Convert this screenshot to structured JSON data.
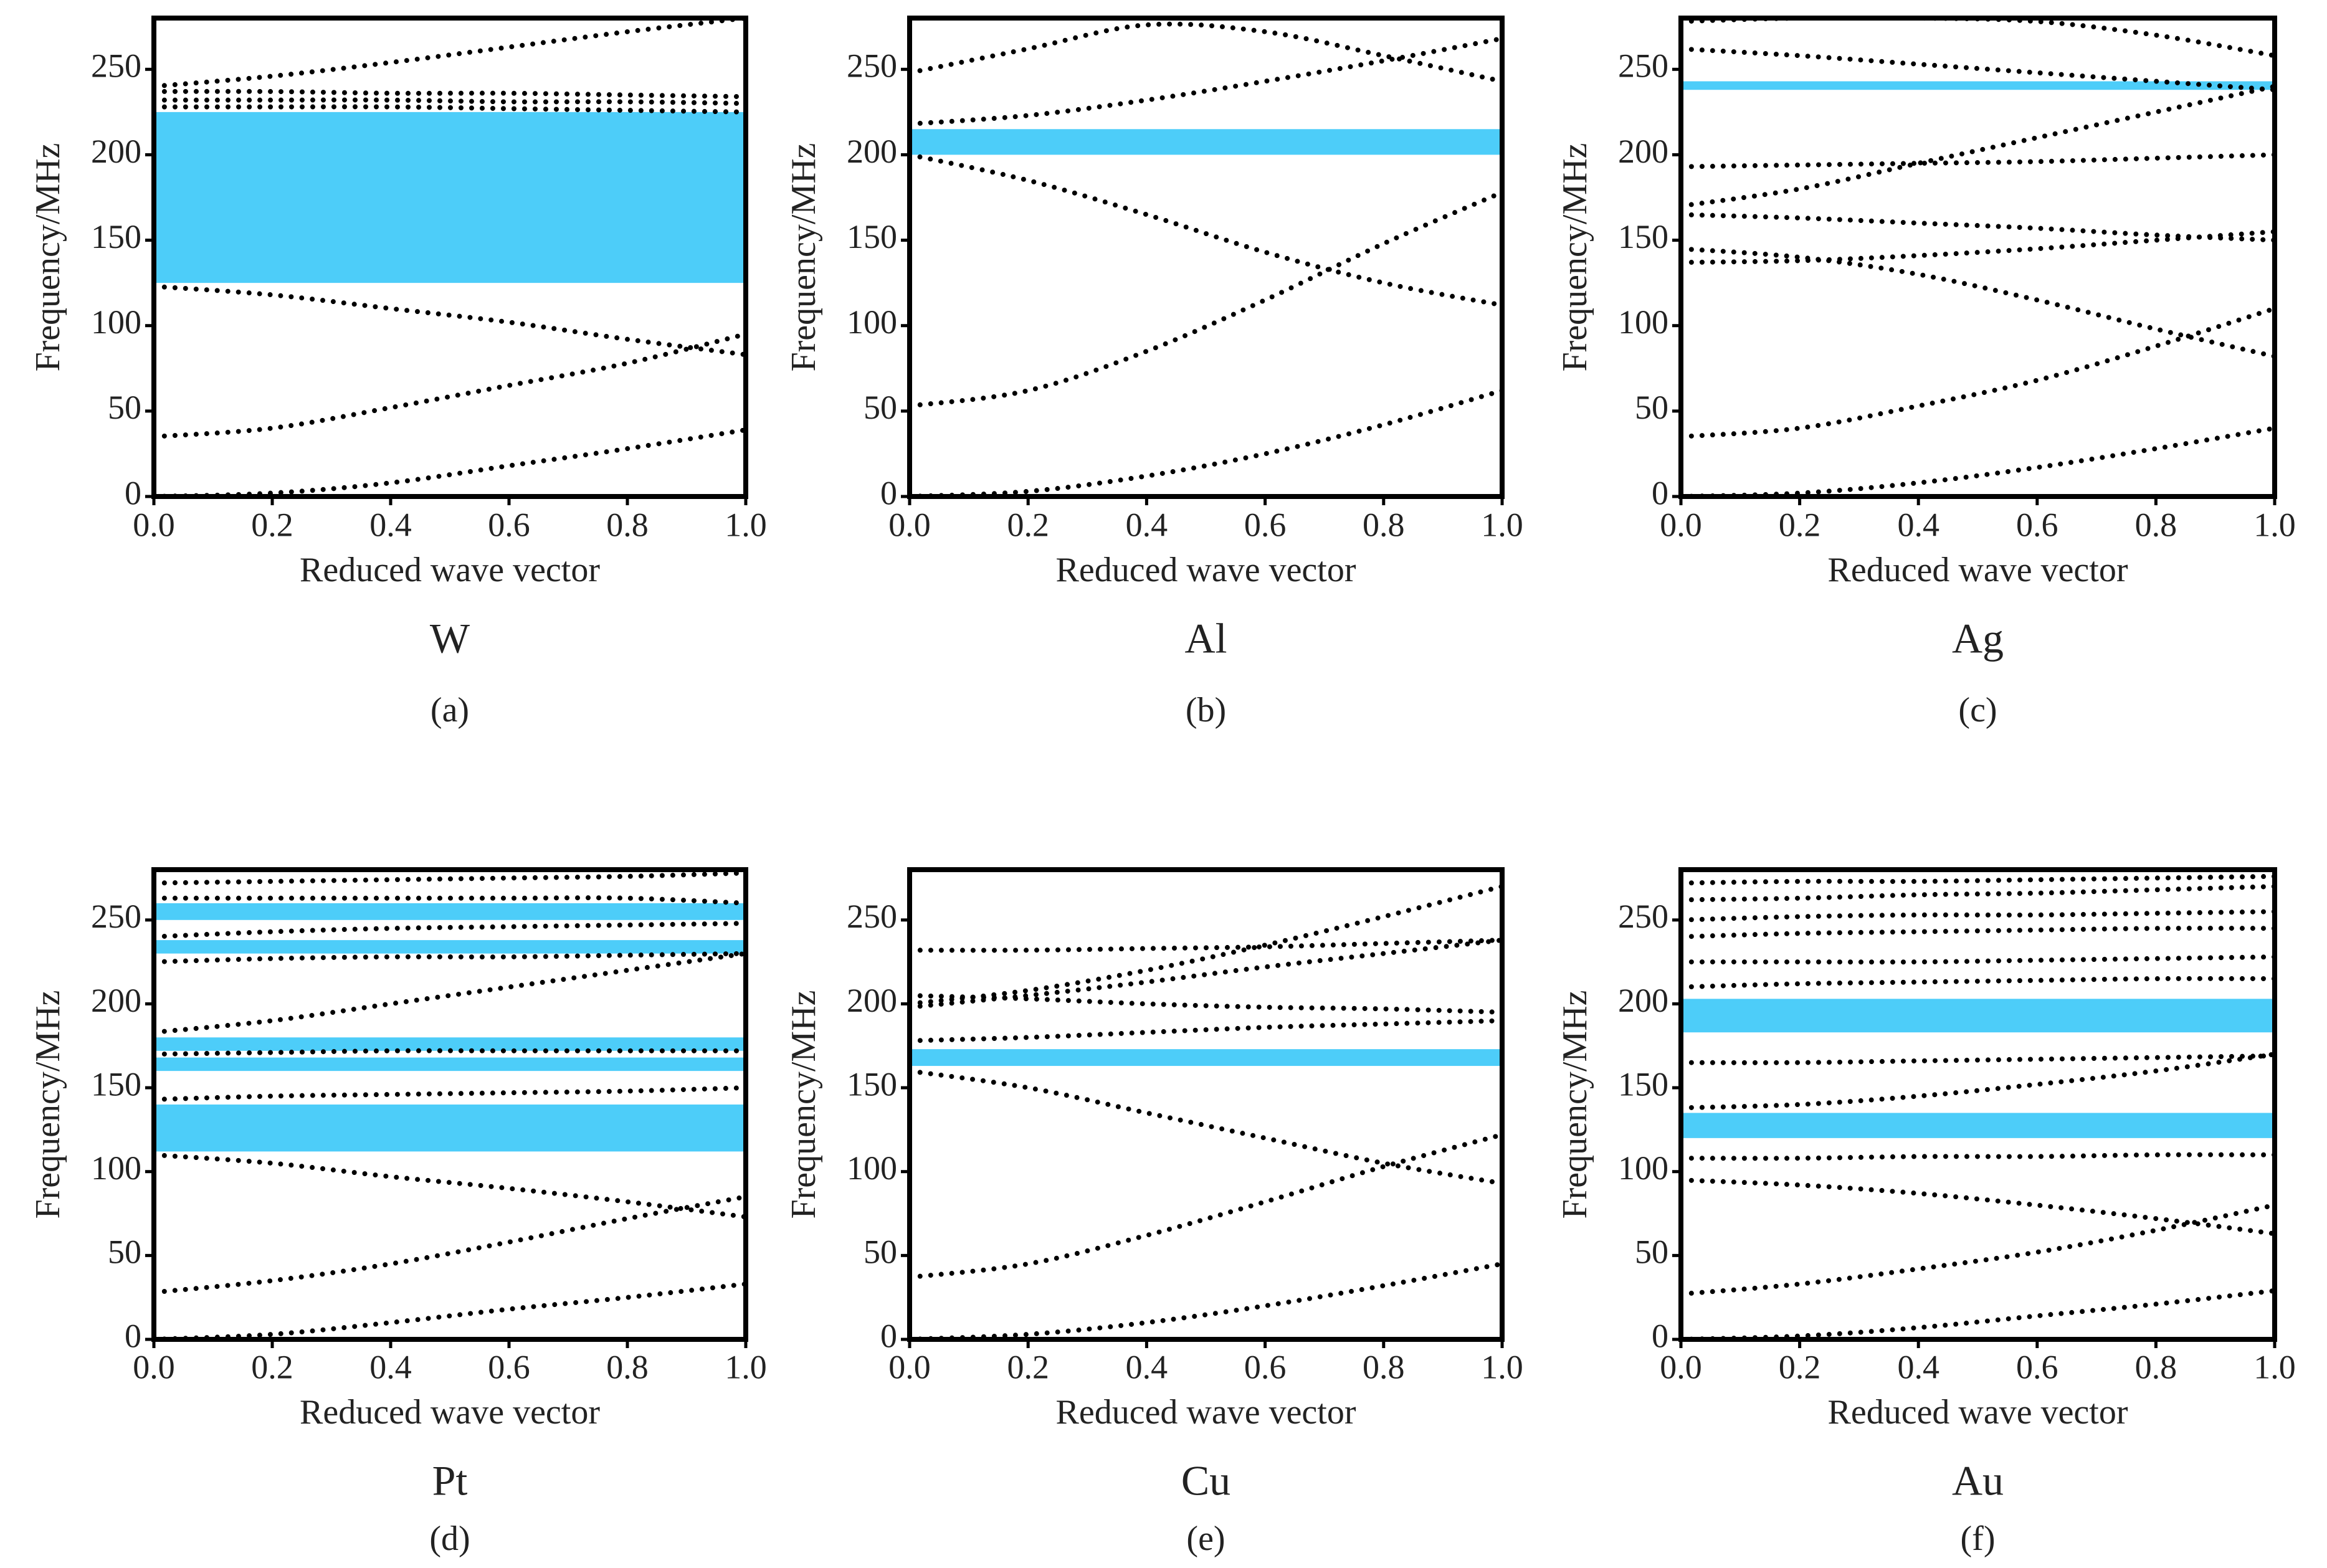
{
  "chart_data": [
    {
      "type": "line",
      "title": "W",
      "label": "(a)",
      "xlabel": "Reduced wave vector",
      "ylabel": "Frequency/MHz",
      "x": [
        0,
        0.2,
        0.4,
        0.6,
        0.8,
        1.0
      ],
      "xlim": [
        0,
        1
      ],
      "xticks": [
        {
          "value": 0,
          "label": "0.0"
        },
        0.2,
        0.4,
        0.6,
        0.8,
        {
          "value": 1,
          "label": "1.0"
        }
      ],
      "ylim": [
        0,
        280
      ],
      "yticks": [
        0,
        50,
        100,
        150,
        200,
        250
      ],
      "gap_color": "#4dcdf9",
      "gaps": [
        [
          125,
          225
        ]
      ],
      "series": [
        {
          "color": "#000",
          "values": [
            0,
            2,
            8,
            18,
            28,
            39
          ]
        },
        {
          "color": "#000",
          "values": [
            35,
            40,
            52,
            65,
            78,
            95
          ]
        },
        {
          "color": "#000",
          "values": [
            123,
            118,
            110,
            102,
            92,
            83
          ]
        },
        {
          "color": "#000",
          "values": [
            228,
            228,
            228,
            227,
            226,
            225
          ]
        },
        {
          "color": "#000",
          "values": [
            232,
            232,
            232,
            231,
            231,
            230
          ]
        },
        {
          "color": "#000",
          "values": [
            237,
            237,
            236,
            236,
            235,
            234
          ]
        },
        {
          "color": "#000",
          "values": [
            240,
            246,
            254,
            263,
            272,
            280
          ]
        }
      ]
    },
    {
      "type": "line",
      "title": "Al",
      "label": "(b)",
      "xlabel": "Reduced wave vector",
      "ylabel": "Frequency/MHz",
      "x": [
        0,
        0.2,
        0.4,
        0.6,
        0.8,
        1.0
      ],
      "xlim": [
        0,
        1
      ],
      "xticks": [
        {
          "value": 0,
          "label": "0.0"
        },
        0.2,
        0.4,
        0.6,
        0.8,
        {
          "value": 1,
          "label": "1.0"
        }
      ],
      "ylim": [
        0,
        280
      ],
      "yticks": [
        0,
        50,
        100,
        150,
        200,
        250
      ],
      "gap_color": "#4dcdf9",
      "gaps": [
        [
          200,
          215
        ]
      ],
      "series": [
        {
          "color": "#000",
          "values": [
            0,
            3,
            12,
            25,
            42,
            62
          ]
        },
        {
          "color": "#000",
          "values": [
            53,
            62,
            85,
            115,
            148,
            178
          ]
        },
        {
          "color": "#000",
          "values": [
            200,
            185,
            165,
            143,
            125,
            112
          ]
        },
        {
          "color": "#000",
          "values": [
            218,
            223,
            232,
            243,
            255,
            268
          ]
        },
        {
          "color": "#000",
          "values": [
            248,
            262,
            276,
            272,
            258,
            243
          ]
        }
      ]
    },
    {
      "type": "line",
      "title": "Ag",
      "label": "(c)",
      "xlabel": "Reduced wave vector",
      "ylabel": "Frequency/MHz",
      "x": [
        0,
        0.2,
        0.4,
        0.6,
        0.8,
        1.0
      ],
      "xlim": [
        0,
        1
      ],
      "xticks": [
        {
          "value": 0,
          "label": "0.0"
        },
        0.2,
        0.4,
        0.6,
        0.8,
        {
          "value": 1,
          "label": "1.0"
        }
      ],
      "ylim": [
        0,
        280
      ],
      "yticks": [
        0,
        50,
        100,
        150,
        200,
        250
      ],
      "gap_color": "#4dcdf9",
      "gaps": [
        [
          238,
          243
        ]
      ],
      "series": [
        {
          "color": "#000",
          "values": [
            0,
            2,
            8,
            17,
            28,
            40
          ]
        },
        {
          "color": "#000",
          "values": [
            35,
            40,
            53,
            68,
            88,
            110
          ]
        },
        {
          "color": "#000",
          "values": [
            137,
            138,
            141,
            145,
            150,
            155
          ]
        },
        {
          "color": "#000",
          "values": [
            145,
            140,
            130,
            115,
            98,
            82
          ]
        },
        {
          "color": "#000",
          "values": [
            165,
            163,
            160,
            157,
            153,
            150
          ]
        },
        {
          "color": "#000",
          "values": [
            170,
            180,
            195,
            210,
            225,
            240
          ]
        },
        {
          "color": "#000",
          "values": [
            193,
            194,
            195,
            196,
            198,
            200
          ]
        },
        {
          "color": "#000",
          "values": [
            262,
            258,
            253,
            248,
            243,
            238
          ]
        },
        {
          "color": "#000",
          "values": [
            278,
            280,
            280,
            278,
            270,
            258
          ]
        }
      ]
    },
    {
      "type": "line",
      "title": "Pt",
      "label": "(d)",
      "xlabel": "Reduced wave vector",
      "ylabel": "Frequency/MHz",
      "x": [
        0,
        0.2,
        0.4,
        0.6,
        0.8,
        1.0
      ],
      "xlim": [
        0,
        1
      ],
      "xticks": [
        {
          "value": 0,
          "label": "0.0"
        },
        0.2,
        0.4,
        0.6,
        0.8,
        {
          "value": 1,
          "label": "1.0"
        }
      ],
      "ylim": [
        0,
        280
      ],
      "yticks": [
        0,
        50,
        100,
        150,
        200,
        250
      ],
      "gap_color": "#4dcdf9",
      "gaps": [
        [
          112,
          140
        ],
        [
          160,
          168
        ],
        [
          172,
          180
        ],
        [
          230,
          238
        ],
        [
          250,
          260
        ]
      ],
      "series": [
        {
          "color": "#000",
          "values": [
            0,
            3,
            10,
            18,
            25,
            33
          ]
        },
        {
          "color": "#000",
          "values": [
            28,
            35,
            45,
            58,
            72,
            85
          ]
        },
        {
          "color": "#000",
          "values": [
            110,
            105,
            97,
            90,
            82,
            73
          ]
        },
        {
          "color": "#000",
          "values": [
            143,
            145,
            146,
            147,
            148,
            150
          ]
        },
        {
          "color": "#000",
          "values": [
            170,
            171,
            172,
            172,
            172,
            172
          ]
        },
        {
          "color": "#000",
          "values": [
            183,
            190,
            200,
            210,
            220,
            230
          ]
        },
        {
          "color": "#000",
          "values": [
            225,
            227,
            228,
            228,
            229,
            230
          ]
        },
        {
          "color": "#000",
          "values": [
            240,
            243,
            245,
            246,
            247,
            248
          ]
        },
        {
          "color": "#000",
          "values": [
            263,
            263,
            263,
            263,
            263,
            260
          ]
        },
        {
          "color": "#000",
          "values": [
            272,
            273,
            274,
            275,
            276,
            278
          ]
        }
      ]
    },
    {
      "type": "line",
      "title": "Cu",
      "label": "(e)",
      "xlabel": "Reduced wave vector",
      "ylabel": "Frequency/MHz",
      "x": [
        0,
        0.2,
        0.4,
        0.6,
        0.8,
        1.0
      ],
      "xlim": [
        0,
        1
      ],
      "xticks": [
        {
          "value": 0,
          "label": "0.0"
        },
        0.2,
        0.4,
        0.6,
        0.8,
        {
          "value": 1,
          "label": "1.0"
        }
      ],
      "ylim": [
        0,
        280
      ],
      "yticks": [
        0,
        50,
        100,
        150,
        200,
        250
      ],
      "gap_color": "#4dcdf9",
      "gaps": [
        [
          163,
          173
        ]
      ],
      "series": [
        {
          "color": "#000",
          "values": [
            0,
            3,
            10,
            20,
            32,
            45
          ]
        },
        {
          "color": "#000",
          "values": [
            37,
            45,
            62,
            82,
            103,
            122
          ]
        },
        {
          "color": "#000",
          "values": [
            160,
            150,
            135,
            120,
            105,
            93
          ]
        },
        {
          "color": "#000",
          "values": [
            178,
            180,
            183,
            186,
            188,
            190
          ]
        },
        {
          "color": "#000",
          "values": [
            205,
            203,
            200,
            198,
            197,
            195
          ]
        },
        {
          "color": "#000",
          "values": [
            200,
            208,
            220,
            235,
            252,
            270
          ]
        },
        {
          "color": "#000",
          "values": [
            198,
            205,
            213,
            222,
            230,
            238
          ]
        },
        {
          "color": "#000",
          "values": [
            232,
            232,
            233,
            234,
            236,
            238
          ]
        }
      ]
    },
    {
      "type": "line",
      "title": "Au",
      "label": "(f)",
      "xlabel": "Reduced wave vector",
      "ylabel": "Frequency/MHz",
      "x": [
        0,
        0.2,
        0.4,
        0.6,
        0.8,
        1.0
      ],
      "xlim": [
        0,
        1
      ],
      "xticks": [
        {
          "value": 0,
          "label": "0.0"
        },
        0.2,
        0.4,
        0.6,
        0.8,
        {
          "value": 1,
          "label": "1.0"
        }
      ],
      "ylim": [
        0,
        280
      ],
      "yticks": [
        0,
        50,
        100,
        150,
        200,
        250
      ],
      "gap_color": "#4dcdf9",
      "gaps": [
        [
          120,
          135
        ],
        [
          183,
          203
        ]
      ],
      "series": [
        {
          "color": "#000",
          "values": [
            0,
            2,
            7,
            14,
            21,
            29
          ]
        },
        {
          "color": "#000",
          "values": [
            27,
            33,
            42,
            52,
            65,
            80
          ]
        },
        {
          "color": "#000",
          "values": [
            95,
            92,
            87,
            80,
            72,
            63
          ]
        },
        {
          "color": "#000",
          "values": [
            108,
            108,
            109,
            109,
            110,
            110
          ]
        },
        {
          "color": "#000",
          "values": [
            138,
            140,
            145,
            152,
            160,
            170
          ]
        },
        {
          "color": "#000",
          "values": [
            165,
            165,
            166,
            167,
            168,
            169
          ]
        },
        {
          "color": "#000",
          "values": [
            210,
            212,
            213,
            214,
            215,
            215
          ]
        },
        {
          "color": "#000",
          "values": [
            225,
            225,
            225,
            226,
            227,
            228
          ]
        },
        {
          "color": "#000",
          "values": [
            240,
            242,
            243,
            244,
            245,
            245
          ]
        },
        {
          "color": "#000",
          "values": [
            250,
            252,
            253,
            253,
            254,
            255
          ]
        },
        {
          "color": "#000",
          "values": [
            262,
            263,
            265,
            266,
            268,
            270
          ]
        },
        {
          "color": "#000",
          "values": [
            272,
            273,
            273,
            274,
            275,
            276
          ]
        }
      ]
    }
  ]
}
